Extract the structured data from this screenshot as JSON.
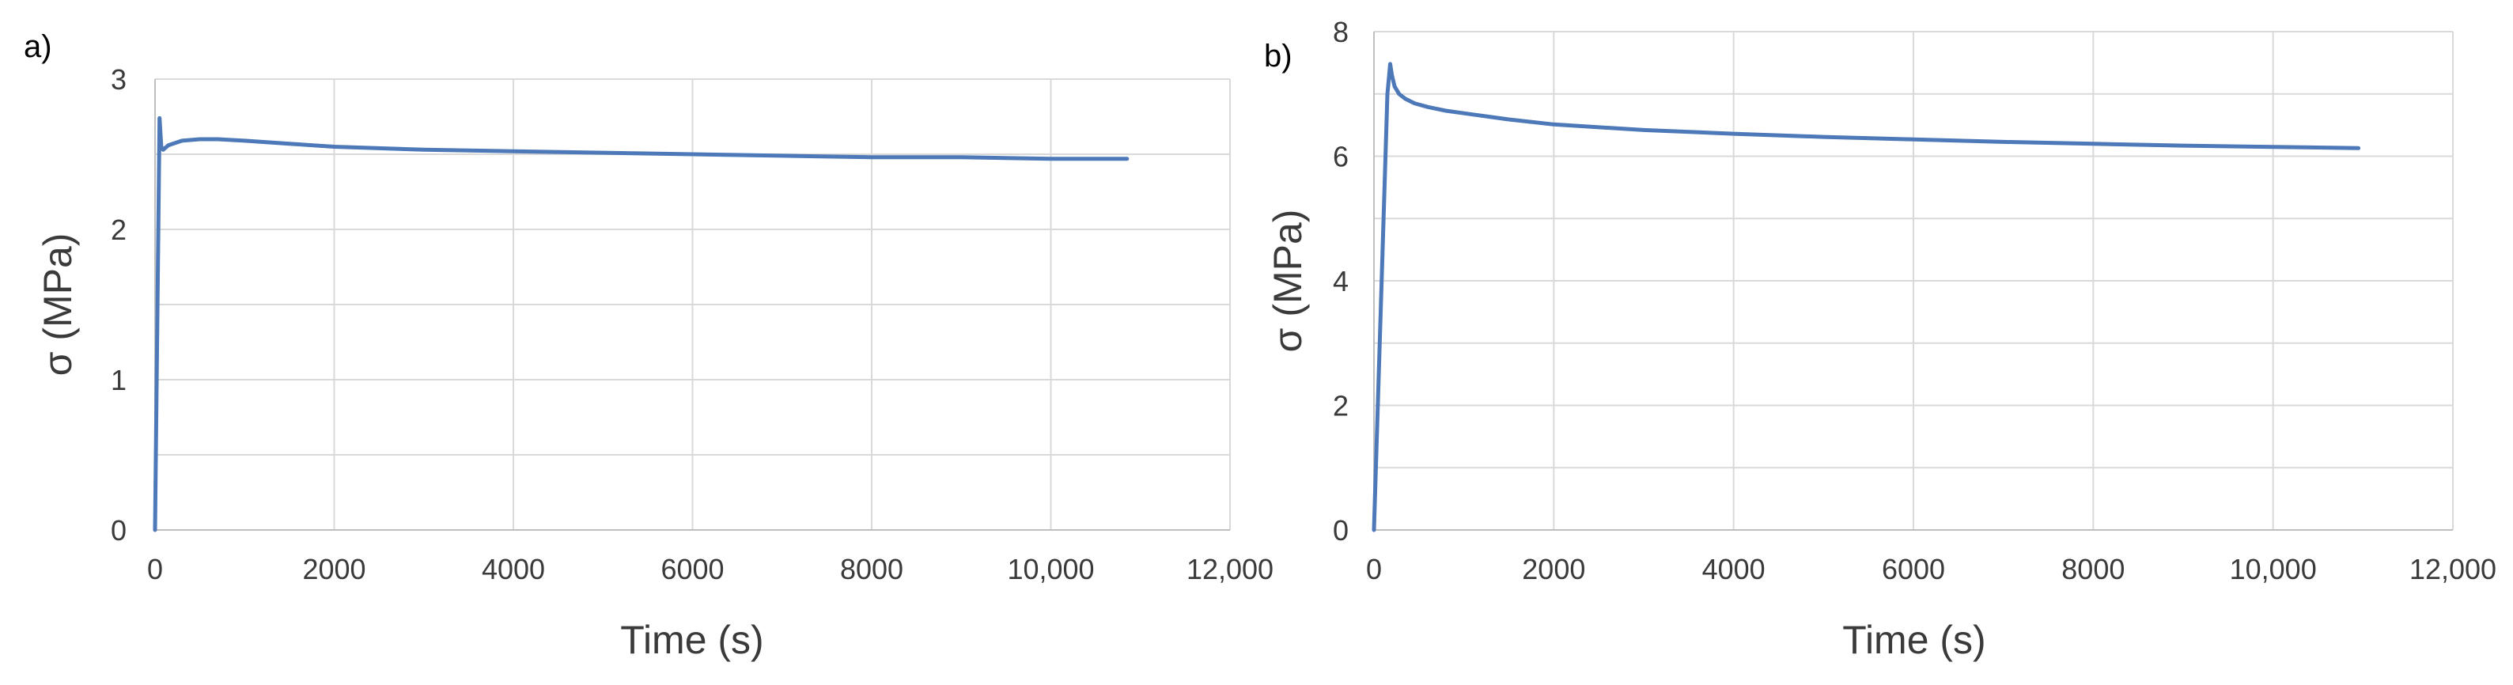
{
  "series_color": "#4e79b8",
  "chart_data": [
    {
      "type": "line",
      "panel_label": "a)",
      "xlabel": "Time (s)",
      "ylabel": "σ (MPa)",
      "xlim": [
        0,
        12000
      ],
      "ylim": [
        0,
        3
      ],
      "xticks": [
        0,
        2000,
        4000,
        6000,
        8000,
        10000,
        12000
      ],
      "xtick_labels": [
        "0",
        "2000",
        "4000",
        "6000",
        "8000",
        "10,000",
        "12,000"
      ],
      "yticks": [
        0,
        1,
        2,
        3
      ],
      "ytick_labels": [
        "0",
        "1",
        "2",
        "3"
      ],
      "y_minor_gridlines": [
        0.5,
        1.5,
        2.5
      ],
      "grid": true,
      "legend": "none",
      "series": [
        {
          "x": [
            0,
            50,
            70,
            90,
            150,
            300,
            500,
            700,
            1000,
            1500,
            2000,
            3000,
            4000,
            5000,
            6000,
            7000,
            8000,
            9000,
            10000,
            10850
          ],
          "y": [
            0,
            2.74,
            2.55,
            2.53,
            2.56,
            2.59,
            2.6,
            2.6,
            2.59,
            2.57,
            2.55,
            2.53,
            2.52,
            2.51,
            2.5,
            2.49,
            2.48,
            2.48,
            2.47,
            2.47
          ]
        }
      ]
    },
    {
      "type": "line",
      "panel_label": "b)",
      "xlabel": "Time (s)",
      "ylabel": "σ (MPa)",
      "xlim": [
        0,
        12000
      ],
      "ylim": [
        0,
        8
      ],
      "xticks": [
        0,
        2000,
        4000,
        6000,
        8000,
        10000,
        12000
      ],
      "xtick_labels": [
        "0",
        "2000",
        "4000",
        "6000",
        "8000",
        "10,000",
        "12,000"
      ],
      "yticks": [
        0,
        2,
        4,
        6,
        8
      ],
      "ytick_labels": [
        "0",
        "2",
        "4",
        "6",
        "8"
      ],
      "y_minor_gridlines": [
        1,
        3,
        5,
        7
      ],
      "grid": true,
      "legend": "none",
      "series": [
        {
          "x": [
            0,
            150,
            180,
            200,
            230,
            280,
            350,
            450,
            600,
            800,
            1000,
            1500,
            2000,
            3000,
            4000,
            5000,
            6000,
            7000,
            8000,
            9000,
            10000,
            10950
          ],
          "y": [
            0,
            7.0,
            7.48,
            7.3,
            7.12,
            7.0,
            6.92,
            6.85,
            6.79,
            6.73,
            6.69,
            6.59,
            6.51,
            6.42,
            6.36,
            6.31,
            6.27,
            6.23,
            6.2,
            6.17,
            6.15,
            6.13
          ]
        }
      ]
    }
  ]
}
